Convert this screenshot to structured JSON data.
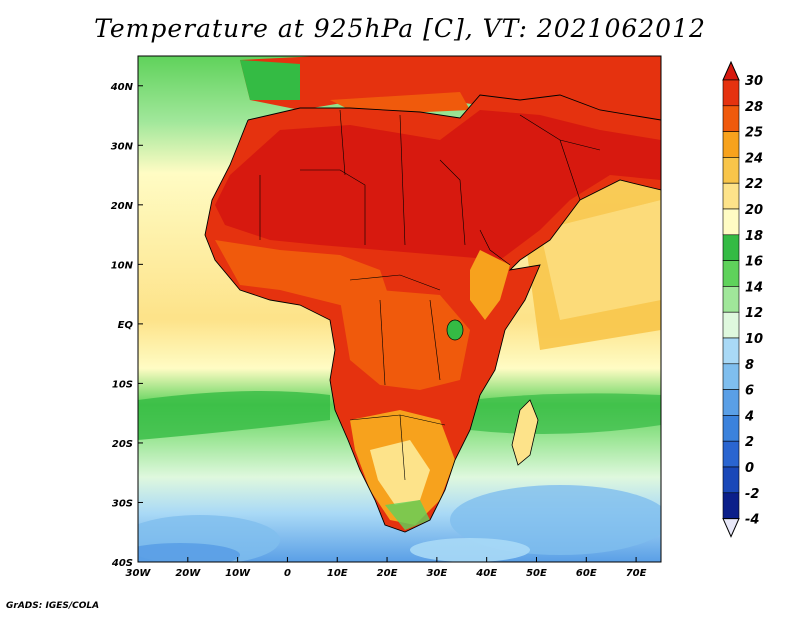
{
  "title": "Temperature at 925hPa [C], VT: 2021062012",
  "credit": "GrADS: IGES/COLA",
  "map": {
    "lon_range": [
      -30,
      75
    ],
    "lat_range": [
      -40,
      45
    ],
    "x_tick_labels": [
      "30W",
      "20W",
      "10W",
      "0",
      "10E",
      "20E",
      "30E",
      "40E",
      "50E",
      "60E",
      "70E"
    ],
    "y_tick_labels": [
      "40N",
      "30N",
      "20N",
      "10N",
      "EQ",
      "10S",
      "20S",
      "30S",
      "40S"
    ]
  },
  "colorbar": {
    "levels": [
      "30",
      "28",
      "25",
      "24",
      "22",
      "20",
      "18",
      "16",
      "14",
      "12",
      "10",
      "8",
      "6",
      "4",
      "2",
      "0",
      "-2",
      "-4"
    ],
    "colors": [
      "#d7190f",
      "#e5320f",
      "#f05a0c",
      "#f7a21d",
      "#f8c54a",
      "#fde38a",
      "#fffcc4",
      "#34bb44",
      "#5fd25b",
      "#a0e79a",
      "#dff8de",
      "#a9d9f6",
      "#7fbeee",
      "#5a9fe6",
      "#3b82dc",
      "#2a65d0",
      "#1a48b8",
      "#0b1f8a"
    ]
  },
  "chart_data": {
    "type": "heatmap",
    "title": "Temperature at 925hPa [C], VT: 2021062012",
    "xlabel": "",
    "ylabel": "",
    "x_range": [
      -30,
      75
    ],
    "y_range": [
      -40,
      45
    ],
    "x_ticks": [
      "30W",
      "20W",
      "10W",
      "0",
      "10E",
      "20E",
      "30E",
      "40E",
      "50E",
      "60E",
      "70E"
    ],
    "y_ticks": [
      "40N",
      "30N",
      "20N",
      "10N",
      "EQ",
      "10S",
      "20S",
      "30S",
      "40S"
    ],
    "colorbar_levels": [
      30,
      28,
      25,
      24,
      22,
      20,
      18,
      16,
      14,
      12,
      10,
      8,
      6,
      4,
      2,
      0,
      -2,
      -4
    ]
  }
}
